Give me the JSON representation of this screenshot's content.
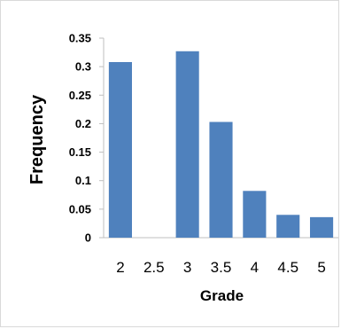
{
  "chart_data": {
    "type": "bar",
    "title": "",
    "xlabel": "Grade",
    "ylabel": "Frequency",
    "categories": [
      "2",
      "2.5",
      "3",
      "3.5",
      "4",
      "4.5",
      "5"
    ],
    "series": [
      {
        "values": [
          0.308,
          0,
          0.327,
          0.203,
          0.082,
          0.04,
          0.036
        ]
      }
    ],
    "y_ticks": [
      "0",
      "0.05",
      "0.1",
      "0.15",
      "0.2",
      "0.25",
      "0.3",
      "0.35"
    ],
    "ylim": [
      0,
      0.35
    ],
    "grid": false,
    "legend": "none",
    "bar_color": "#4f81bd",
    "axis_color": "#bfbfbf"
  }
}
